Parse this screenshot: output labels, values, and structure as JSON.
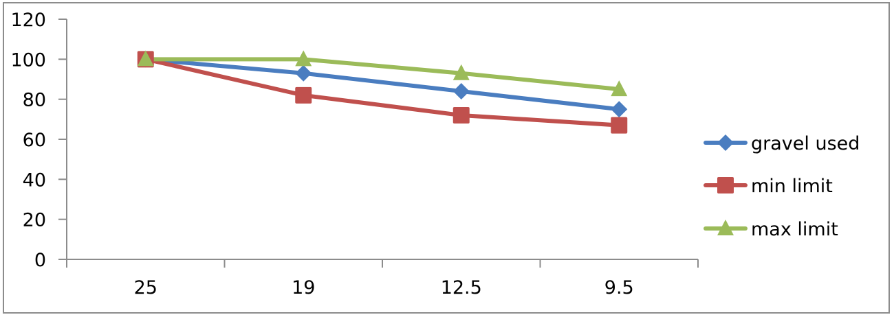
{
  "chart_data": {
    "type": "line",
    "title": "",
    "xlabel": "",
    "ylabel": "",
    "categories": [
      "25",
      "19",
      "12.5",
      "9.5"
    ],
    "ylim": [
      0,
      120
    ],
    "yticks": [
      "0",
      "20",
      "40",
      "60",
      "80",
      "100",
      "120"
    ],
    "grid": false,
    "legend_position": "right",
    "series": [
      {
        "name": "gravel used",
        "color": "#4a7dc0",
        "marker": "diamond",
        "values": [
          100,
          93,
          84,
          75
        ]
      },
      {
        "name": "min limit",
        "color": "#c0504d",
        "marker": "square",
        "values": [
          100,
          82,
          72,
          67
        ]
      },
      {
        "name": "max limit",
        "color": "#9bbb59",
        "marker": "triangle",
        "values": [
          100,
          100,
          93,
          85
        ]
      }
    ]
  },
  "legend": {
    "items": [
      "gravel used",
      "min limit",
      "max limit"
    ]
  }
}
